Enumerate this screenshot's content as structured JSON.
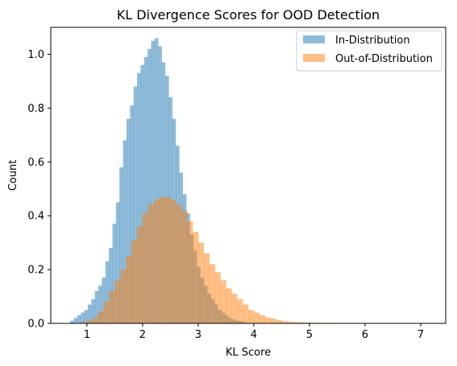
{
  "chart_data": {
    "type": "histogram",
    "title": "KL Divergence Scores for OOD Detection",
    "xlabel": "KL Score",
    "ylabel": "Count",
    "xlim": [
      0.35,
      7.45
    ],
    "ylim": [
      0,
      1.1
    ],
    "xticks": [
      1,
      2,
      3,
      4,
      5,
      6,
      7
    ],
    "xtick_labels": [
      "1",
      "2",
      "3",
      "4",
      "5",
      "6",
      "7"
    ],
    "yticks": [
      0.0,
      0.2,
      0.4,
      0.6,
      0.8,
      1.0
    ],
    "ytick_labels": [
      "0.0",
      "0.2",
      "0.4",
      "0.6",
      "0.8",
      "1.0"
    ],
    "legend": {
      "position": "top-right"
    },
    "series": [
      {
        "name": "In-Distribution",
        "color": "#1f77b4",
        "alpha": 0.5,
        "bins_start": 0.7,
        "bin_width": 0.0632,
        "values": [
          0.01,
          0.02,
          0.03,
          0.04,
          0.05,
          0.07,
          0.09,
          0.12,
          0.14,
          0.17,
          0.23,
          0.28,
          0.37,
          0.45,
          0.58,
          0.68,
          0.76,
          0.81,
          0.88,
          0.93,
          0.96,
          0.99,
          1.02,
          1.05,
          1.06,
          1.03,
          0.97,
          0.92,
          0.84,
          0.76,
          0.66,
          0.56,
          0.48,
          0.41,
          0.33,
          0.27,
          0.21,
          0.17,
          0.14,
          0.11,
          0.09,
          0.07,
          0.05,
          0.04,
          0.03,
          0.02,
          0.015,
          0.01,
          0.008,
          0.005
        ]
      },
      {
        "name": "Out-of-Distribution",
        "color": "#ff7f0e",
        "alpha": 0.5,
        "bins_start": 0.8,
        "bin_width": 0.1,
        "values": [
          0.002,
          0.006,
          0.01,
          0.02,
          0.045,
          0.08,
          0.12,
          0.16,
          0.2,
          0.25,
          0.31,
          0.36,
          0.41,
          0.44,
          0.46,
          0.47,
          0.47,
          0.46,
          0.44,
          0.42,
          0.38,
          0.34,
          0.3,
          0.26,
          0.22,
          0.19,
          0.16,
          0.13,
          0.11,
          0.09,
          0.07,
          0.05,
          0.04,
          0.03,
          0.022,
          0.018,
          0.012,
          0.008,
          0.006,
          0.005,
          0.004,
          0.003,
          0.003,
          0.002,
          0.002,
          0.002,
          0.001,
          0.001,
          0.001,
          0.001,
          0.001,
          0.001,
          0.001,
          0.001,
          0.001,
          0.0,
          0.0,
          0.0,
          0.0,
          0.0,
          0.0,
          0.0,
          0.0,
          0.0,
          0.0
        ]
      }
    ]
  }
}
